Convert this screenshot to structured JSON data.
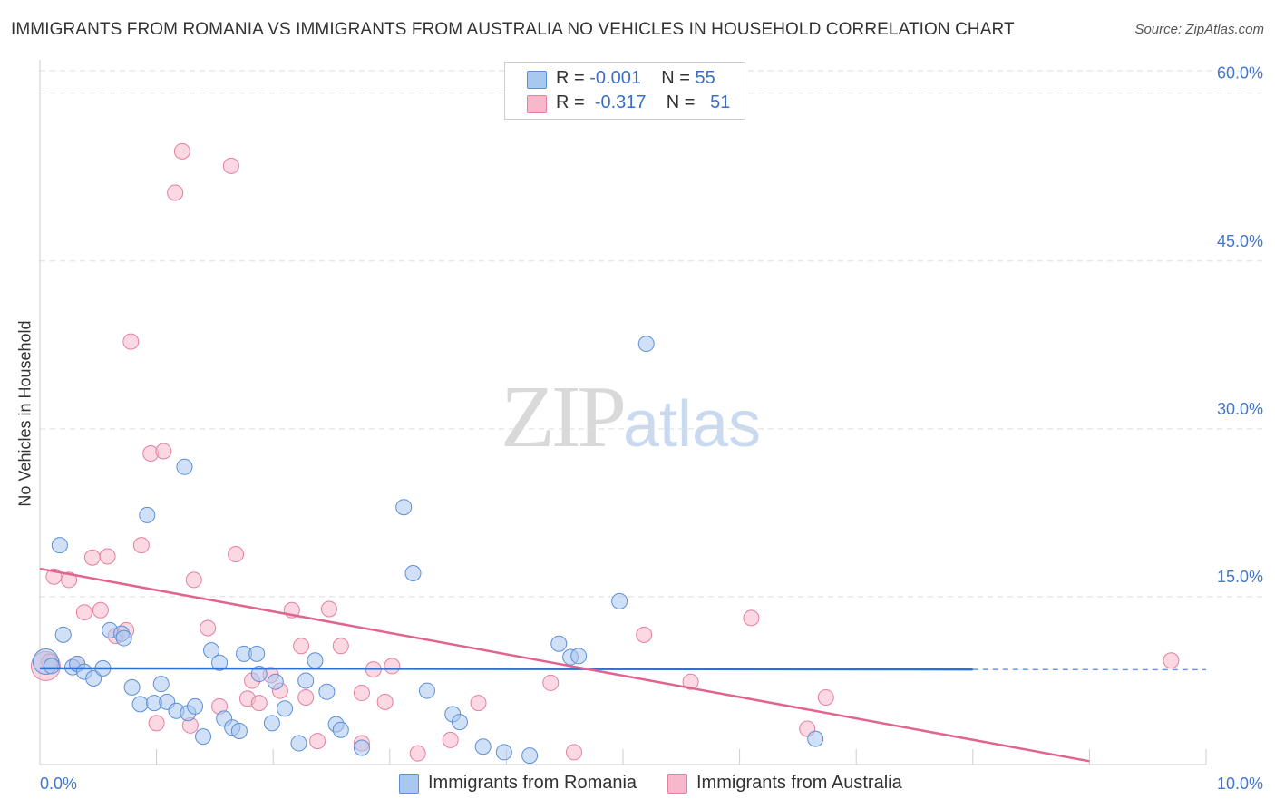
{
  "header": {
    "title": "IMMIGRANTS FROM ROMANIA VS IMMIGRANTS FROM AUSTRALIA NO VEHICLES IN HOUSEHOLD CORRELATION CHART",
    "source": "Source: ZipAtlas.com"
  },
  "watermark": {
    "zip": "ZIP",
    "atlas": "atlas"
  },
  "legend": {
    "rows": [
      {
        "r_label": "R = ",
        "r_value": "-0.001",
        "n_label": "N = ",
        "n_value": "55",
        "color": "#a9c8f0"
      },
      {
        "r_label": "R = ",
        "r_value": "-0.317",
        "n_label": "N = ",
        "n_value": "51",
        "color": "#f7b8cb"
      }
    ]
  },
  "colors": {
    "romania_fill": "#a9c8f0",
    "romania_stroke": "#5b8fd6",
    "romania_line": "#2f6fd0",
    "australia_fill": "#f7b8cb",
    "australia_stroke": "#e57fa0",
    "australia_line": "#e0648f",
    "tick_label": "#4477cc",
    "grid": "#dddddd"
  },
  "chart_data": {
    "type": "scatter",
    "ylabel": "No Vehicles in Household",
    "xlabel": "",
    "xlim": [
      0,
      10
    ],
    "ylim": [
      0,
      62
    ],
    "x_tick_labels": [
      {
        "value": 0,
        "label": "0.0%"
      },
      {
        "value": 10,
        "label": "10.0%"
      }
    ],
    "y_tick_labels": [
      {
        "value": 15,
        "label": "15.0%"
      },
      {
        "value": 30,
        "label": "30.0%"
      },
      {
        "value": 45,
        "label": "45.0%"
      },
      {
        "value": 60,
        "label": "60.0%"
      }
    ],
    "grid": true,
    "legend_position": "top-center",
    "series": [
      {
        "name": "Immigrants from Romania",
        "r": -0.001,
        "n": 55,
        "trend": {
          "x": [
            0,
            8.0
          ],
          "y": [
            8.6,
            8.5
          ],
          "dashed_to_x": 10.0
        },
        "points": [
          [
            0.05,
            9.2
          ],
          [
            0.1,
            8.8
          ],
          [
            0.17,
            19.6
          ],
          [
            0.2,
            11.6
          ],
          [
            0.28,
            8.7
          ],
          [
            0.32,
            9.0
          ],
          [
            0.38,
            8.3
          ],
          [
            0.46,
            7.7
          ],
          [
            0.54,
            8.6
          ],
          [
            0.6,
            12.0
          ],
          [
            0.7,
            11.7
          ],
          [
            0.72,
            11.3
          ],
          [
            0.79,
            6.9
          ],
          [
            0.86,
            5.4
          ],
          [
            0.92,
            22.3
          ],
          [
            0.98,
            5.5
          ],
          [
            1.04,
            7.2
          ],
          [
            1.09,
            5.6
          ],
          [
            1.17,
            4.8
          ],
          [
            1.24,
            26.6
          ],
          [
            1.27,
            4.6
          ],
          [
            1.33,
            5.2
          ],
          [
            1.4,
            2.5
          ],
          [
            1.47,
            10.2
          ],
          [
            1.54,
            9.1
          ],
          [
            1.58,
            4.1
          ],
          [
            1.65,
            3.3
          ],
          [
            1.71,
            3.0
          ],
          [
            1.75,
            9.9
          ],
          [
            1.86,
            9.9
          ],
          [
            1.88,
            8.1
          ],
          [
            1.99,
            3.7
          ],
          [
            2.02,
            7.4
          ],
          [
            2.1,
            5.0
          ],
          [
            2.22,
            1.9
          ],
          [
            2.28,
            7.5
          ],
          [
            2.36,
            9.3
          ],
          [
            2.46,
            6.5
          ],
          [
            2.54,
            3.6
          ],
          [
            2.58,
            3.1
          ],
          [
            2.76,
            1.5
          ],
          [
            3.12,
            23.0
          ],
          [
            3.2,
            17.1
          ],
          [
            3.32,
            6.6
          ],
          [
            3.54,
            4.5
          ],
          [
            3.6,
            3.8
          ],
          [
            3.8,
            1.6
          ],
          [
            3.98,
            1.1
          ],
          [
            4.2,
            0.8
          ],
          [
            4.45,
            10.8
          ],
          [
            4.55,
            9.6
          ],
          [
            4.62,
            9.7
          ],
          [
            4.97,
            14.6
          ],
          [
            5.2,
            37.6
          ],
          [
            6.65,
            2.3
          ]
        ]
      },
      {
        "name": "Immigrants from Australia",
        "r": -0.317,
        "n": 51,
        "trend": {
          "x": [
            0,
            9.0
          ],
          "y": [
            17.5,
            0.3
          ]
        },
        "points": [
          [
            0.05,
            8.8
          ],
          [
            0.08,
            9.2
          ],
          [
            0.12,
            16.8
          ],
          [
            0.25,
            16.5
          ],
          [
            0.32,
            9.0
          ],
          [
            0.38,
            13.6
          ],
          [
            0.45,
            18.5
          ],
          [
            0.52,
            13.8
          ],
          [
            0.58,
            18.6
          ],
          [
            0.65,
            11.5
          ],
          [
            0.74,
            12.0
          ],
          [
            0.78,
            37.8
          ],
          [
            0.87,
            19.6
          ],
          [
            0.95,
            27.8
          ],
          [
            1.0,
            3.7
          ],
          [
            1.06,
            28.0
          ],
          [
            1.16,
            51.1
          ],
          [
            1.22,
            54.8
          ],
          [
            1.29,
            3.5
          ],
          [
            1.32,
            16.5
          ],
          [
            1.44,
            12.2
          ],
          [
            1.54,
            5.2
          ],
          [
            1.64,
            53.5
          ],
          [
            1.68,
            18.8
          ],
          [
            1.78,
            5.9
          ],
          [
            1.82,
            7.5
          ],
          [
            1.88,
            5.5
          ],
          [
            1.98,
            8.0
          ],
          [
            2.06,
            6.6
          ],
          [
            2.16,
            13.8
          ],
          [
            2.24,
            10.6
          ],
          [
            2.28,
            6.0
          ],
          [
            2.38,
            2.1
          ],
          [
            2.48,
            13.9
          ],
          [
            2.58,
            10.6
          ],
          [
            2.76,
            6.4
          ],
          [
            2.76,
            1.9
          ],
          [
            2.86,
            8.5
          ],
          [
            2.96,
            5.6
          ],
          [
            3.02,
            8.8
          ],
          [
            3.24,
            1.0
          ],
          [
            3.52,
            2.2
          ],
          [
            3.76,
            5.5
          ],
          [
            4.38,
            7.3
          ],
          [
            4.58,
            1.1
          ],
          [
            5.18,
            11.6
          ],
          [
            5.58,
            7.4
          ],
          [
            6.1,
            13.1
          ],
          [
            6.58,
            3.2
          ],
          [
            6.74,
            6.0
          ],
          [
            9.7,
            9.3
          ]
        ]
      }
    ]
  },
  "bottom_legend": [
    {
      "label": "Immigrants from Romania",
      "color": "#a9c8f0"
    },
    {
      "label": "Immigrants from Australia",
      "color": "#f7b8cb"
    }
  ]
}
